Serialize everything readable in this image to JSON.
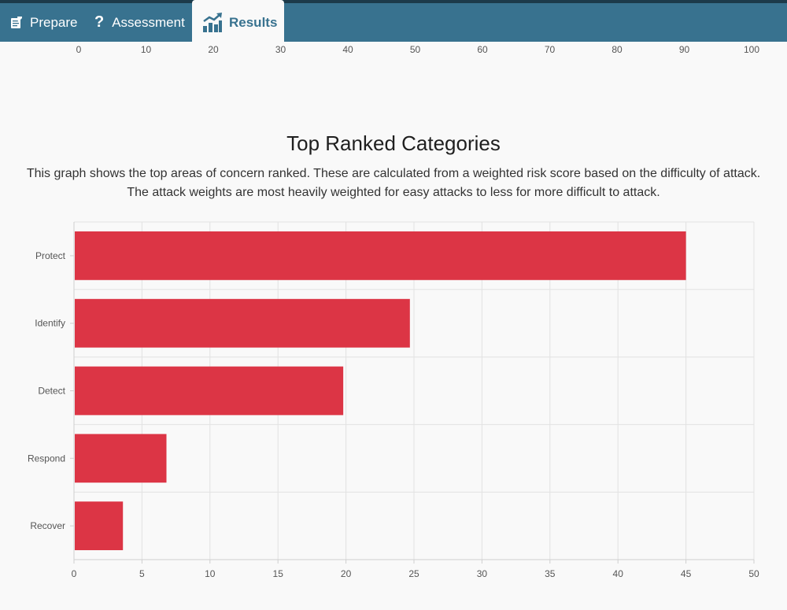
{
  "nav": {
    "tabs": [
      {
        "label": "Prepare",
        "icon": "notepad-icon"
      },
      {
        "label": "Assessment",
        "icon": "question-icon"
      },
      {
        "label": "Results",
        "icon": "bar-chart-trend-icon",
        "active": true
      }
    ]
  },
  "top_axis": {
    "ticks": [
      "0",
      "10",
      "20",
      "30",
      "40",
      "50",
      "60",
      "70",
      "80",
      "90",
      "100"
    ]
  },
  "section": {
    "title": "Top Ranked Categories",
    "description_line1": "This graph shows the top areas of concern ranked. These are calculated from a weighted risk score based on the difficulty of attack.",
    "description_line2": "The attack weights are most heavily weighted for easy attacks to less for more difficult to attack."
  },
  "chart_data": {
    "type": "bar",
    "orientation": "horizontal",
    "categories": [
      "Protect",
      "Identify",
      "Detect",
      "Respond",
      "Recover"
    ],
    "values": [
      45,
      24.7,
      19.8,
      6.8,
      3.6
    ],
    "xlim": [
      0,
      50
    ],
    "xticks": [
      0,
      5,
      10,
      15,
      20,
      25,
      30,
      35,
      40,
      45,
      50
    ],
    "bar_color": "#dc3545",
    "grid": true
  }
}
